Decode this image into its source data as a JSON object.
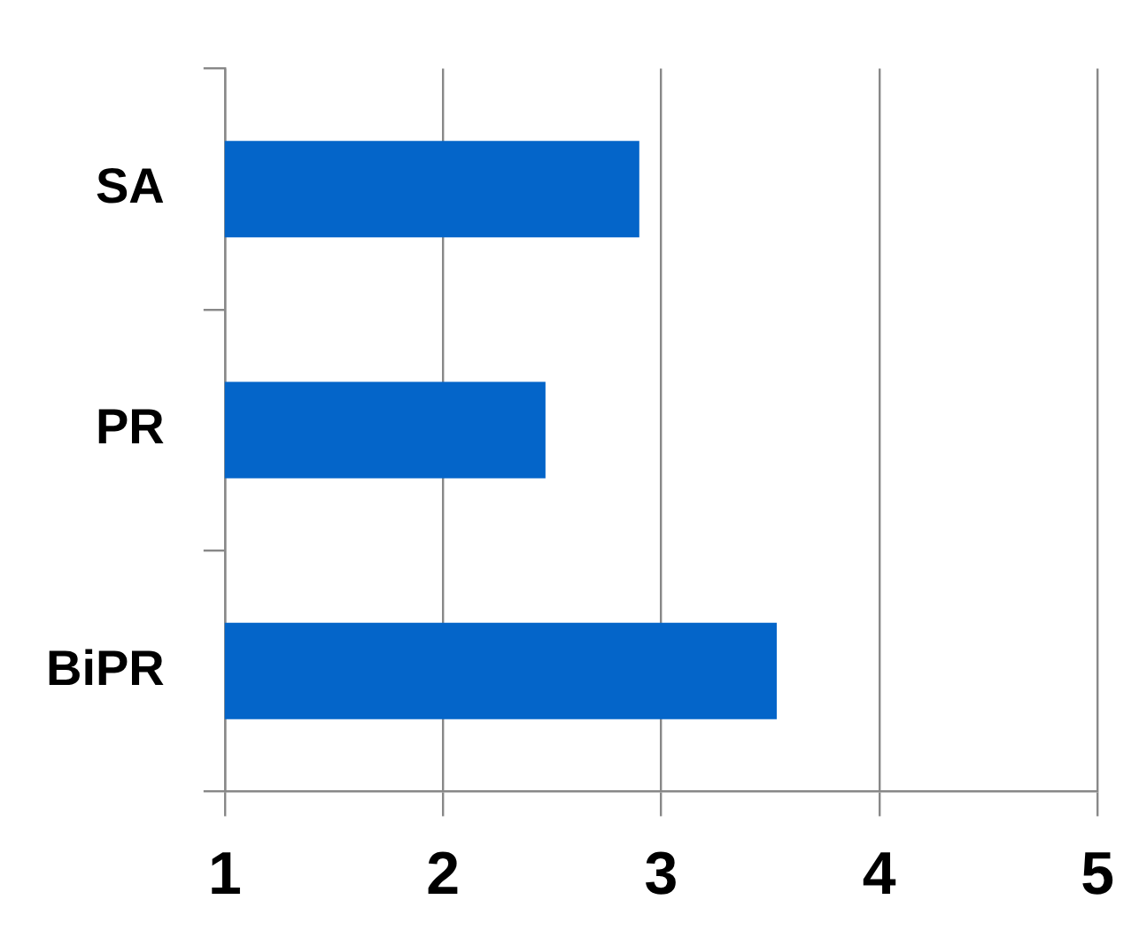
{
  "chart_data": {
    "type": "bar",
    "orientation": "horizontal",
    "categories": [
      "SA",
      "PR",
      "BiPR"
    ],
    "values": [
      2.9,
      2.47,
      3.53
    ],
    "color": "#0465c9",
    "xlim": [
      1,
      5
    ],
    "xticks": [
      1,
      2,
      3,
      4,
      5
    ],
    "grid": "x",
    "legend": false
  }
}
